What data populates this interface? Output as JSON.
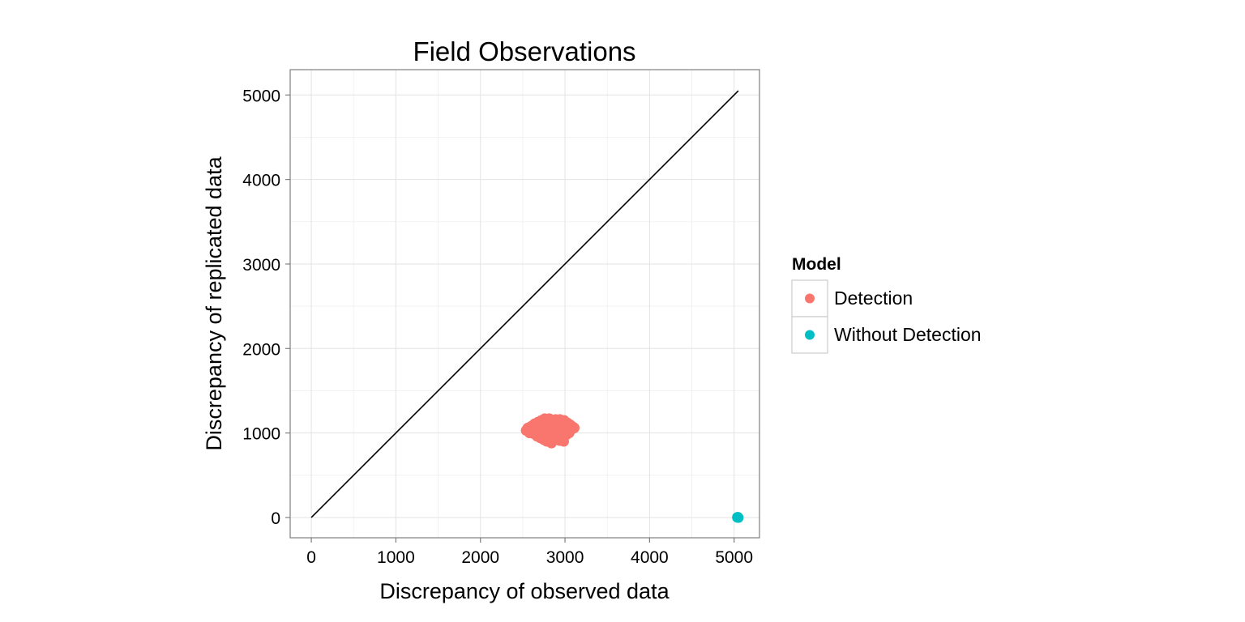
{
  "chart_data": {
    "type": "scatter",
    "title": "Field Observations",
    "xlabel": "Discrepancy of observed data",
    "ylabel": "Discrepancy of replicated data",
    "xlim": [
      -250,
      5300
    ],
    "ylim": [
      -240,
      5300
    ],
    "x_ticks": [
      0,
      1000,
      2000,
      3000,
      4000,
      5000
    ],
    "y_ticks": [
      0,
      1000,
      2000,
      3000,
      4000,
      5000
    ],
    "x_tick_labels": [
      "0",
      "1000",
      "2000",
      "3000",
      "4000",
      "5000"
    ],
    "y_tick_labels": [
      "0",
      "1000",
      "2000",
      "3000",
      "4000",
      "5000"
    ],
    "grid": true,
    "reference_line": {
      "x": [
        0,
        5050
      ],
      "y": [
        0,
        5050
      ],
      "color": "#000000"
    },
    "legend": {
      "title": "Model",
      "placement": "right"
    },
    "series": [
      {
        "name": "Detection",
        "color": "#F8766D",
        "points": [
          [
            2540,
            1030
          ],
          [
            2560,
            1060
          ],
          [
            2580,
            1000
          ],
          [
            2600,
            1080
          ],
          [
            2610,
            1040
          ],
          [
            2630,
            990
          ],
          [
            2640,
            1110
          ],
          [
            2650,
            1050
          ],
          [
            2660,
            1010
          ],
          [
            2670,
            960
          ],
          [
            2680,
            1130
          ],
          [
            2690,
            1070
          ],
          [
            2700,
            1020
          ],
          [
            2710,
            940
          ],
          [
            2720,
            1150
          ],
          [
            2730,
            1090
          ],
          [
            2740,
            1040
          ],
          [
            2745,
            990
          ],
          [
            2750,
            920
          ],
          [
            2760,
            1170
          ],
          [
            2765,
            1110
          ],
          [
            2770,
            1060
          ],
          [
            2775,
            1000
          ],
          [
            2780,
            950
          ],
          [
            2785,
            900
          ],
          [
            2790,
            1140
          ],
          [
            2795,
            1080
          ],
          [
            2800,
            1030
          ],
          [
            2805,
            970
          ],
          [
            2810,
            920
          ],
          [
            2815,
            1170
          ],
          [
            2820,
            1110
          ],
          [
            2825,
            1050
          ],
          [
            2830,
            1000
          ],
          [
            2835,
            940
          ],
          [
            2840,
            880
          ],
          [
            2845,
            1150
          ],
          [
            2850,
            1090
          ],
          [
            2855,
            1030
          ],
          [
            2860,
            980
          ],
          [
            2865,
            920
          ],
          [
            2870,
            1130
          ],
          [
            2875,
            1070
          ],
          [
            2880,
            1010
          ],
          [
            2885,
            960
          ],
          [
            2890,
            1160
          ],
          [
            2895,
            1100
          ],
          [
            2900,
            1040
          ],
          [
            2905,
            990
          ],
          [
            2910,
            930
          ],
          [
            2915,
            1140
          ],
          [
            2920,
            1080
          ],
          [
            2925,
            1020
          ],
          [
            2930,
            970
          ],
          [
            2935,
            910
          ],
          [
            2940,
            1160
          ],
          [
            2945,
            1100
          ],
          [
            2950,
            1050
          ],
          [
            2955,
            990
          ],
          [
            2960,
            940
          ],
          [
            2965,
            1130
          ],
          [
            2970,
            1070
          ],
          [
            2975,
            1010
          ],
          [
            2980,
            960
          ],
          [
            2985,
            900
          ],
          [
            2990,
            1150
          ],
          [
            3000,
            1090
          ],
          [
            3010,
            1030
          ],
          [
            3020,
            980
          ],
          [
            3030,
            1120
          ],
          [
            3040,
            1060
          ],
          [
            3050,
            1000
          ],
          [
            3060,
            1100
          ],
          [
            3070,
            1040
          ],
          [
            3080,
            1080
          ],
          [
            3090,
            1050
          ],
          [
            3100,
            1070
          ],
          [
            3110,
            1060
          ],
          [
            2690,
            1100
          ],
          [
            2720,
            1000
          ],
          [
            2760,
            1030
          ],
          [
            2800,
            1100
          ],
          [
            2840,
            1010
          ],
          [
            2880,
            1060
          ],
          [
            2920,
            1050
          ],
          [
            2960,
            1020
          ],
          [
            3000,
            1040
          ],
          [
            2650,
            1080
          ]
        ]
      },
      {
        "name": "Without Detection",
        "color": "#00BFC4",
        "points": [
          [
            5040,
            0
          ],
          [
            5045,
            3
          ],
          [
            5050,
            -2
          ],
          [
            5038,
            2
          ]
        ]
      }
    ]
  }
}
